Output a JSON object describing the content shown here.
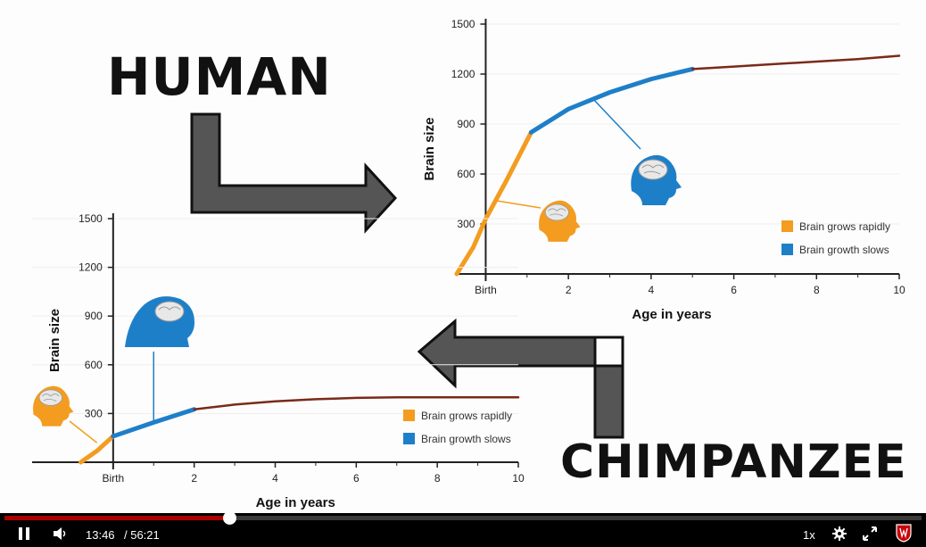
{
  "labels": {
    "human": "HUMAN",
    "chimp": "CHIMPANZEE"
  },
  "legend": {
    "rapid": "Brain grows rapidly",
    "slow": "Brain growth slows"
  },
  "chart_data": [
    {
      "type": "line",
      "subject": "HUMAN",
      "xlabel": "Age in years",
      "ylabel": "Brain size",
      "xlim": [
        -0.7,
        10
      ],
      "ylim": [
        0,
        1500
      ],
      "xticks": [
        {
          "v": 0,
          "l": "Birth"
        },
        {
          "v": 2,
          "l": "2"
        },
        {
          "v": 4,
          "l": "4"
        },
        {
          "v": 6,
          "l": "6"
        },
        {
          "v": 8,
          "l": "8"
        },
        {
          "v": 10,
          "l": "10"
        }
      ],
      "yticks": [
        300,
        600,
        900,
        1200,
        1500
      ],
      "colors": {
        "rapid": "#F39C1F",
        "slow": "#1E7FC9",
        "late": "#7A2A18"
      },
      "series": [
        {
          "name": "Brain grows rapidly",
          "color": "rapid",
          "points": [
            [
              -0.7,
              0
            ],
            [
              -0.3,
              160
            ],
            [
              0,
              330
            ],
            [
              0.5,
              560
            ],
            [
              1.1,
              850
            ]
          ]
        },
        {
          "name": "Brain growth slows",
          "color": "slow",
          "points": [
            [
              1.1,
              850
            ],
            [
              2,
              990
            ],
            [
              3,
              1090
            ],
            [
              4,
              1170
            ],
            [
              5,
              1230
            ]
          ]
        },
        {
          "color": "late",
          "points": [
            [
              5,
              1230
            ],
            [
              6,
              1245
            ],
            [
              7,
              1260
            ],
            [
              8,
              1275
            ],
            [
              9,
              1290
            ],
            [
              10,
              1310
            ]
          ]
        }
      ]
    },
    {
      "type": "line",
      "subject": "CHIMPANZEE",
      "xlabel": "Age in years",
      "ylabel": "Brain size",
      "xlim": [
        -2,
        10
      ],
      "ylim": [
        0,
        1500
      ],
      "xticks": [
        {
          "v": 0,
          "l": "Birth"
        },
        {
          "v": 2,
          "l": "2"
        },
        {
          "v": 4,
          "l": "4"
        },
        {
          "v": 6,
          "l": "6"
        },
        {
          "v": 8,
          "l": "8"
        },
        {
          "v": 10,
          "l": "10"
        }
      ],
      "yticks": [
        300,
        600,
        900,
        1200,
        1500
      ],
      "colors": {
        "rapid": "#F39C1F",
        "slow": "#1E7FC9",
        "late": "#7A2A18"
      },
      "series": [
        {
          "name": "Brain grows rapidly",
          "color": "rapid",
          "points": [
            [
              -0.8,
              0
            ],
            [
              -0.4,
              70
            ],
            [
              0,
              160
            ]
          ]
        },
        {
          "name": "Brain growth slows",
          "color": "slow",
          "points": [
            [
              0,
              160
            ],
            [
              1,
              245
            ],
            [
              2,
              325
            ]
          ]
        },
        {
          "color": "late",
          "points": [
            [
              2,
              325
            ],
            [
              3,
              355
            ],
            [
              4,
              375
            ],
            [
              5,
              388
            ],
            [
              6,
              396
            ],
            [
              7,
              400
            ],
            [
              8,
              400
            ],
            [
              9,
              400
            ],
            [
              10,
              400
            ]
          ]
        }
      ]
    }
  ],
  "player": {
    "current_time": "13:46",
    "duration": "/ 56:21",
    "progress": 0.245,
    "speed": "1x",
    "icons": {
      "pause": "pause-icon",
      "volume": "volume-icon",
      "settings": "gear-icon",
      "fullscreen": "fullscreen-icon",
      "logo": "university-crest-icon"
    }
  }
}
